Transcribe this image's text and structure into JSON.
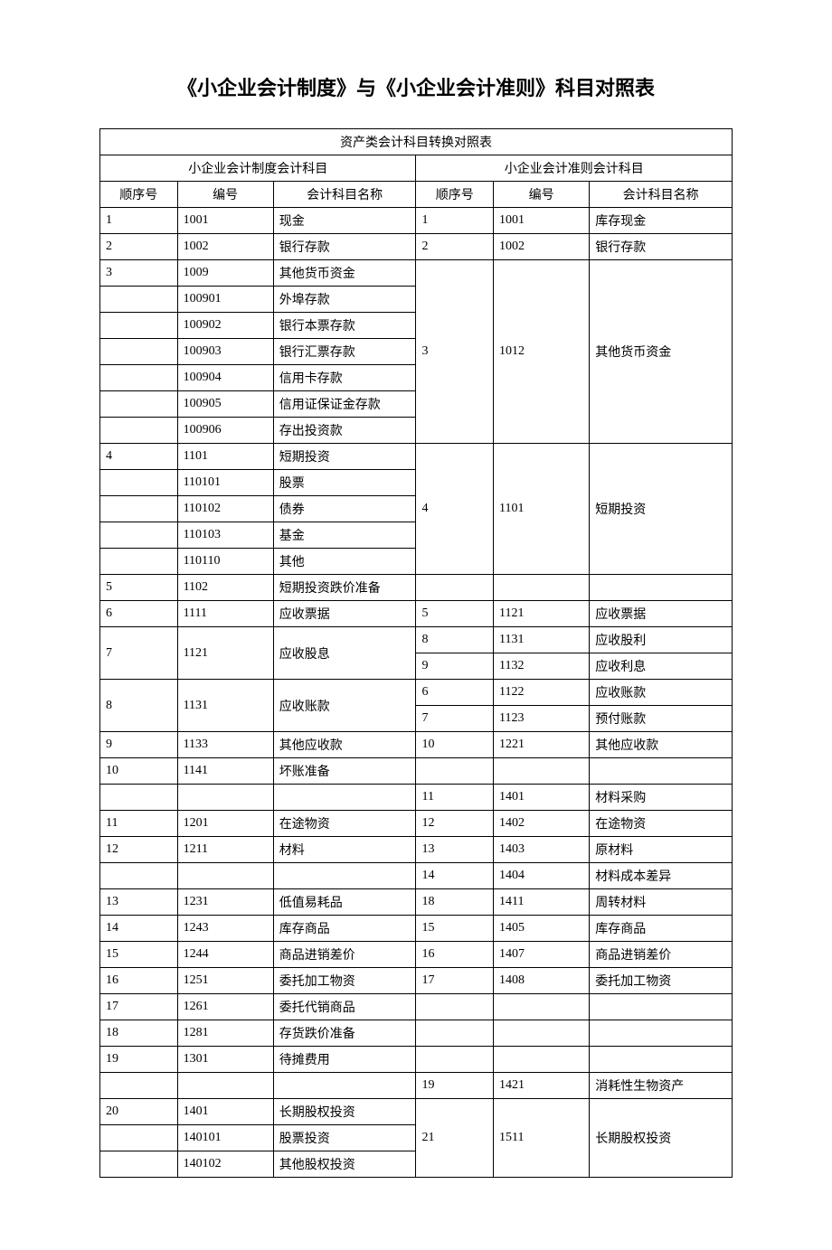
{
  "page_title": "《小企业会计制度》与《小企业会计准则》科目对照表",
  "table_title": "资产类会计科目转换对照表",
  "left_header": "小企业会计制度会计科目",
  "right_header": "小企业会计准则会计科目",
  "col_headers": {
    "seq": "顺序号",
    "code": "编号",
    "name": "会计科目名称"
  },
  "rows": [
    {
      "l_seq": "1",
      "l_code": "1001",
      "l_name": "现金",
      "r_seq": "1",
      "r_code": "1001",
      "r_name": "库存现金"
    },
    {
      "l_seq": "2",
      "l_code": "1002",
      "l_name": "银行存款",
      "r_seq": "2",
      "r_code": "1002",
      "r_name": "银行存款"
    },
    {
      "l_seq": "3",
      "l_code": "1009",
      "l_name": "其他货币资金",
      "r_seq": "3",
      "r_code": "1012",
      "r_name": "其他货币资金",
      "r_rowspan": 7
    },
    {
      "l_seq": "",
      "l_code": "100901",
      "l_name": "外埠存款"
    },
    {
      "l_seq": "",
      "l_code": "100902",
      "l_name": "银行本票存款"
    },
    {
      "l_seq": "",
      "l_code": "100903",
      "l_name": "银行汇票存款"
    },
    {
      "l_seq": "",
      "l_code": "100904",
      "l_name": "信用卡存款"
    },
    {
      "l_seq": "",
      "l_code": "100905",
      "l_name": "信用证保证金存款"
    },
    {
      "l_seq": "",
      "l_code": "100906",
      "l_name": "存出投资款"
    },
    {
      "l_seq": "4",
      "l_code": "1101",
      "l_name": "短期投资",
      "r_seq": "4",
      "r_code": "1101",
      "r_name": "短期投资",
      "r_rowspan": 5
    },
    {
      "l_seq": "",
      "l_code": "110101",
      "l_name": "股票"
    },
    {
      "l_seq": "",
      "l_code": "110102",
      "l_name": "债券"
    },
    {
      "l_seq": "",
      "l_code": "110103",
      "l_name": "基金"
    },
    {
      "l_seq": "",
      "l_code": "110110",
      "l_name": "其他"
    },
    {
      "l_seq": "5",
      "l_code": "1102",
      "l_name": "短期投资跌价准备",
      "r_seq": "",
      "r_code": "",
      "r_name": ""
    },
    {
      "l_seq": "6",
      "l_code": "1111",
      "l_name": "应收票据",
      "r_seq": "5",
      "r_code": "1121",
      "r_name": "应收票据"
    },
    {
      "l_seq": "7",
      "l_code": "1121",
      "l_name": "应收股息",
      "l_rowspan": 2,
      "r_seq": "8",
      "r_code": "1131",
      "r_name": "应收股利"
    },
    {
      "r_seq": "9",
      "r_code": "1132",
      "r_name": "应收利息"
    },
    {
      "l_seq": "8",
      "l_code": "1131",
      "l_name": "应收账款",
      "l_rowspan": 2,
      "r_seq": "6",
      "r_code": "1122",
      "r_name": "应收账款"
    },
    {
      "r_seq": "7",
      "r_code": "1123",
      "r_name": "预付账款"
    },
    {
      "l_seq": "9",
      "l_code": "1133",
      "l_name": "其他应收款",
      "r_seq": "10",
      "r_code": "1221",
      "r_name": "其他应收款"
    },
    {
      "l_seq": "10",
      "l_code": "1141",
      "l_name": "坏账准备",
      "r_seq": "",
      "r_code": "",
      "r_name": ""
    },
    {
      "l_seq": "",
      "l_code": "",
      "l_name": "",
      "r_seq": "11",
      "r_code": "1401",
      "r_name": "材料采购"
    },
    {
      "l_seq": "11",
      "l_code": "1201",
      "l_name": "在途物资",
      "r_seq": "12",
      "r_code": "1402",
      "r_name": "在途物资"
    },
    {
      "l_seq": "12",
      "l_code": "1211",
      "l_name": "材料",
      "r_seq": "13",
      "r_code": "1403",
      "r_name": "原材料"
    },
    {
      "l_seq": "",
      "l_code": "",
      "l_name": "",
      "r_seq": "14",
      "r_code": "1404",
      "r_name": "材料成本差异"
    },
    {
      "l_seq": "13",
      "l_code": "1231",
      "l_name": "低值易耗品",
      "r_seq": "18",
      "r_code": "1411",
      "r_name": "周转材料"
    },
    {
      "l_seq": "14",
      "l_code": "1243",
      "l_name": "库存商品",
      "r_seq": "15",
      "r_code": "1405",
      "r_name": "库存商品"
    },
    {
      "l_seq": "15",
      "l_code": "1244",
      "l_name": "商品进销差价",
      "r_seq": "16",
      "r_code": "1407",
      "r_name": "商品进销差价"
    },
    {
      "l_seq": "16",
      "l_code": "1251",
      "l_name": "委托加工物资",
      "r_seq": "17",
      "r_code": "1408",
      "r_name": "委托加工物资"
    },
    {
      "l_seq": "17",
      "l_code": "1261",
      "l_name": "委托代销商品",
      "r_seq": "",
      "r_code": "",
      "r_name": ""
    },
    {
      "l_seq": "18",
      "l_code": "1281",
      "l_name": "存货跌价准备",
      "r_seq": "",
      "r_code": "",
      "r_name": ""
    },
    {
      "l_seq": "19",
      "l_code": "1301",
      "l_name": "待摊费用",
      "r_seq": "",
      "r_code": "",
      "r_name": ""
    },
    {
      "l_seq": "",
      "l_code": "",
      "l_name": "",
      "r_seq": "19",
      "r_code": "1421",
      "r_name": "消耗性生物资产"
    },
    {
      "l_seq": "20",
      "l_code": "1401",
      "l_name": "长期股权投资",
      "r_seq": "21",
      "r_code": "1511",
      "r_name": "长期股权投资",
      "r_rowspan": 3
    },
    {
      "l_seq": "",
      "l_code": "140101",
      "l_name": "股票投资"
    },
    {
      "l_seq": "",
      "l_code": "140102",
      "l_name": "其他股权投资"
    }
  ]
}
